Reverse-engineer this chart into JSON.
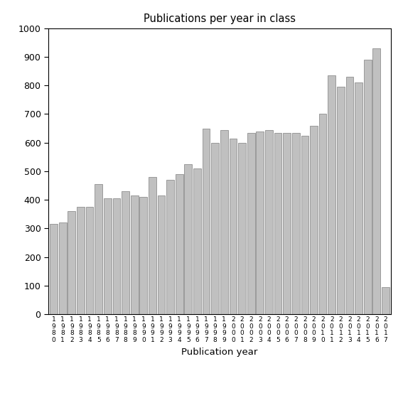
{
  "title": "Publications per year in class",
  "xlabel": "Publication year",
  "ylim": [
    0,
    1000
  ],
  "yticks": [
    0,
    100,
    200,
    300,
    400,
    500,
    600,
    700,
    800,
    900,
    1000
  ],
  "bar_color": "#c0c0c0",
  "bar_edge_color": "#808080",
  "years": [
    "1980",
    "1981",
    "1982",
    "1983",
    "1984",
    "1985",
    "1986",
    "1987",
    "1988",
    "1989",
    "1990",
    "1991",
    "1992",
    "1993",
    "1994",
    "1995",
    "1996",
    "1997",
    "1998",
    "1999",
    "2000",
    "2001",
    "2002",
    "2003",
    "2004",
    "2005",
    "2006",
    "2007",
    "2008",
    "2009",
    "2010",
    "2011",
    "2012",
    "2013",
    "2014",
    "2015",
    "2016",
    "2017"
  ],
  "values": [
    315,
    320,
    360,
    375,
    375,
    455,
    405,
    405,
    430,
    415,
    410,
    480,
    415,
    470,
    490,
    525,
    510,
    650,
    600,
    645,
    615,
    600,
    635,
    640,
    645,
    635,
    635,
    635,
    625,
    660,
    700,
    835,
    795,
    830,
    810,
    890,
    930,
    95
  ],
  "background_color": "#ffffff",
  "figsize": [
    5.67,
    5.67
  ],
  "dpi": 100
}
